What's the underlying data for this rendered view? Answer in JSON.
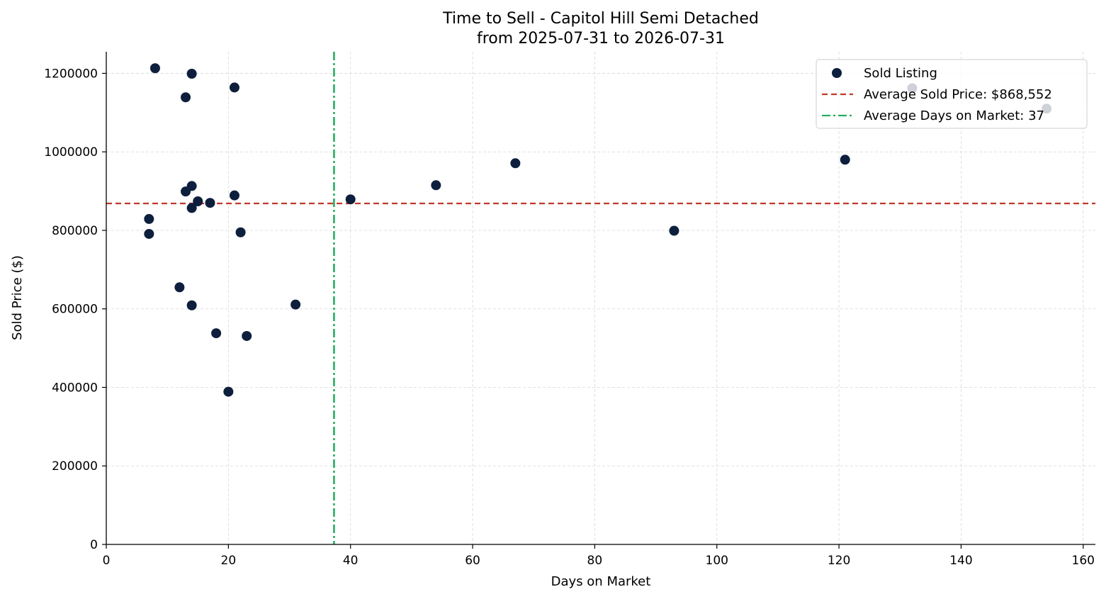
{
  "chart_data": {
    "type": "scatter",
    "title": "Time to Sell - Capitol Hill Semi Detached",
    "subtitle": "from 2025-07-31 to 2026-07-31",
    "xlabel": "Days on Market",
    "ylabel": "Sold Price ($)",
    "xlim": [
      0,
      162
    ],
    "ylim": [
      0,
      1255000
    ],
    "xticks": [
      0,
      20,
      40,
      60,
      80,
      100,
      120,
      140,
      160
    ],
    "yticks": [
      0,
      200000,
      400000,
      600000,
      800000,
      1000000,
      1200000
    ],
    "grid": true,
    "legend_position": "top-right",
    "series": [
      {
        "name": "Sold Listing",
        "color": "#0d1f3c",
        "points": [
          {
            "x": 8,
            "y": 1213000
          },
          {
            "x": 14,
            "y": 1199000
          },
          {
            "x": 21,
            "y": 1164000
          },
          {
            "x": 13,
            "y": 1139000
          },
          {
            "x": 14,
            "y": 913000
          },
          {
            "x": 13,
            "y": 899000
          },
          {
            "x": 21,
            "y": 889000
          },
          {
            "x": 15,
            "y": 874000
          },
          {
            "x": 17,
            "y": 870000
          },
          {
            "x": 14,
            "y": 857000
          },
          {
            "x": 7,
            "y": 829000
          },
          {
            "x": 7,
            "y": 791000
          },
          {
            "x": 22,
            "y": 795000
          },
          {
            "x": 12,
            "y": 655000
          },
          {
            "x": 14,
            "y": 609000
          },
          {
            "x": 31,
            "y": 611000
          },
          {
            "x": 18,
            "y": 538000
          },
          {
            "x": 23,
            "y": 531000
          },
          {
            "x": 20,
            "y": 389000
          },
          {
            "x": 40,
            "y": 879000
          },
          {
            "x": 54,
            "y": 915000
          },
          {
            "x": 67,
            "y": 971000
          },
          {
            "x": 93,
            "y": 799000
          },
          {
            "x": 121,
            "y": 980000
          },
          {
            "x": 132,
            "y": 1162000
          },
          {
            "x": 154,
            "y": 1110000
          }
        ]
      }
    ],
    "reference_lines": [
      {
        "name": "Average Sold Price: $868,552",
        "orientation": "horizontal",
        "value": 868552,
        "color": "#c0392b",
        "style": "dashed"
      },
      {
        "name": "Average Days on Market: 37",
        "orientation": "vertical",
        "value": 37.3,
        "color": "#27ae60",
        "style": "dashdot"
      }
    ]
  }
}
